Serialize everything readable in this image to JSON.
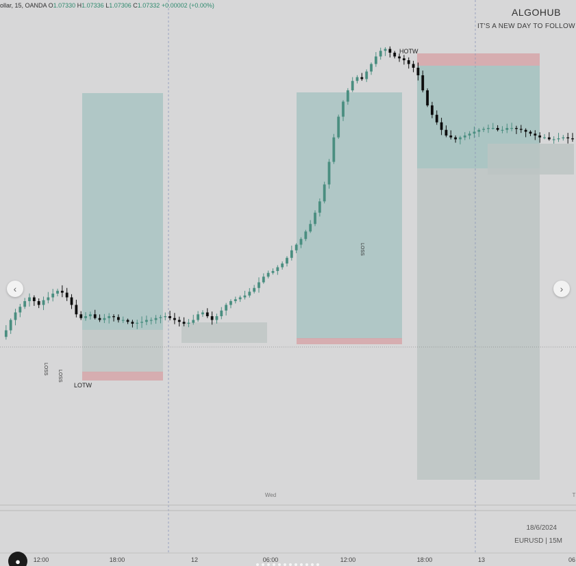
{
  "header": {
    "symbol_prefix": "ollar, 15, OANDA",
    "o_label": "O",
    "o_value": "1.07330",
    "h_label": "H",
    "h_value": "1.07336",
    "l_label": "L",
    "l_value": "1.07306",
    "c_label": "C",
    "c_value": "1.07332",
    "change": "+0.00002 (+0.00%)"
  },
  "brand": {
    "name": "ALGOHUB",
    "tagline": "IT'S A NEW DAY TO FOLLOW TH"
  },
  "info": {
    "date": "18/6/2024",
    "symbol": "EURUSD | 15M"
  },
  "colors": {
    "bull": "#4a8e80",
    "bear": "#0d0d0d",
    "profit_zone": "#a3c2c0",
    "loss_zone": "#d6a6a9",
    "range_box": "#bcc4c3",
    "background": "#d7d7d8"
  },
  "icons": {
    "left": "chevron-left-icon",
    "right": "chevron-right-icon",
    "avatar": "user-icon"
  },
  "chart_data": {
    "type": "candlestick",
    "symbol": "EURUSD",
    "timeframe": "15",
    "time_axis": {
      "ticks": [
        "12:00",
        "18:00",
        "12",
        "06:00",
        "12:00",
        "18:00",
        "13",
        "06"
      ],
      "day_label": "Wed",
      "day_label_right": "T"
    },
    "annotations": {
      "high_label": "HOTW",
      "low_label": "LOTW",
      "loss_labels": [
        "LOSS",
        "LOSS",
        "LOSS"
      ]
    },
    "price_path": [
      0.21,
      0.245,
      0.3,
      0.34,
      0.37,
      0.4,
      0.42,
      0.4,
      0.38,
      0.405,
      0.42,
      0.44,
      0.455,
      0.445,
      0.42,
      0.38,
      0.33,
      0.31,
      0.32,
      0.33,
      0.31,
      0.3,
      0.31,
      0.32,
      0.315,
      0.3,
      0.3,
      0.29,
      0.28,
      0.285,
      0.29,
      0.3,
      0.3,
      0.31,
      0.315,
      0.32,
      0.31,
      0.3,
      0.29,
      0.28,
      0.285,
      0.3,
      0.33,
      0.34,
      0.32,
      0.3,
      0.32,
      0.35,
      0.38,
      0.4,
      0.41,
      0.42,
      0.43,
      0.45,
      0.47,
      0.5,
      0.53,
      0.55,
      0.56,
      0.58,
      0.6,
      0.63,
      0.67,
      0.7,
      0.73,
      0.77,
      0.81,
      0.87,
      0.93,
      1.02,
      1.14,
      1.27,
      1.38,
      1.46,
      1.52,
      1.57,
      1.59,
      1.58,
      1.62,
      1.66,
      1.7,
      1.73,
      1.74,
      1.72,
      1.7,
      1.69,
      1.68,
      1.66,
      1.64,
      1.6,
      1.52,
      1.44,
      1.39,
      1.35,
      1.31,
      1.28,
      1.27,
      1.26,
      1.27,
      1.28,
      1.29,
      1.3,
      1.31,
      1.315,
      1.32,
      1.32,
      1.31,
      1.31,
      1.32,
      1.32,
      1.315,
      1.31,
      1.3,
      1.29,
      1.28,
      1.27,
      1.27,
      1.26,
      1.26,
      1.265,
      1.27,
      1.265,
      1.26
    ]
  }
}
